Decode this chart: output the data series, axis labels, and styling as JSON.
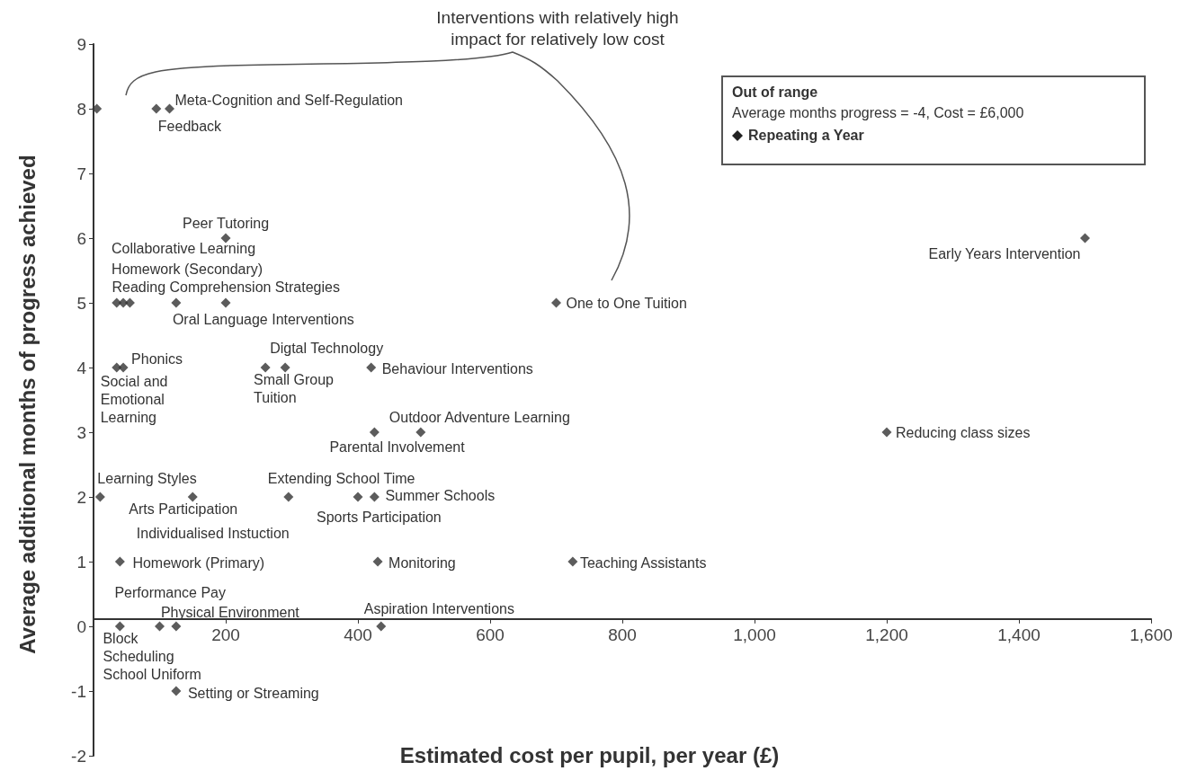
{
  "chart_data": {
    "type": "scatter",
    "xlabel": "Estimated cost per pupil, per year (£)",
    "ylabel": "Average additional months of progress achieved",
    "x": [
      5,
      95,
      115,
      200,
      35,
      45,
      55,
      125,
      200,
      1500,
      700,
      35,
      45,
      260,
      290,
      420,
      425,
      495,
      1200,
      10,
      150,
      295,
      400,
      425,
      40,
      430,
      725,
      40,
      100,
      125,
      435,
      125
    ],
    "values": [
      8,
      8,
      8,
      6,
      5,
      5,
      5,
      5,
      5,
      6,
      5,
      4,
      4,
      4,
      4,
      4,
      3,
      3,
      3,
      2,
      2,
      2,
      2,
      2,
      1,
      1,
      1,
      0,
      0,
      0,
      0,
      -1
    ],
    "color": "#333333",
    "marker": "diamond",
    "grid": false,
    "xlim": [
      0,
      1600
    ],
    "xticks": [
      200,
      400,
      600,
      800,
      {
        "value": 1000,
        "label": "1,000"
      },
      {
        "value": 1200,
        "label": "1,200"
      },
      {
        "value": 1400,
        "label": "1,400"
      },
      {
        "value": 1600,
        "label": "1,600"
      }
    ],
    "ylim": [
      -2,
      9
    ],
    "yticks": [
      -2,
      -1,
      0,
      1,
      2,
      3,
      4,
      5,
      6,
      7,
      8,
      9
    ],
    "annotations": [
      "Interventions with relatively high\nimpact for relatively low cost",
      "Out of range",
      "Average months progress = -4, Cost = £6,000",
      "Repeating a Year",
      {
        "text": "Meta-Cognition and Self-Regulation",
        "x": 115,
        "y": 8
      },
      {
        "text": "Feedback",
        "x": 95,
        "y": 8
      },
      {
        "text": "Peer Tutoring",
        "x": 200,
        "y": 6
      },
      "Collaborative Learning",
      {
        "text": "Homework (Secondary)",
        "x": 45,
        "y": 5
      },
      {
        "text": "Reading Comprehension Strategies",
        "x": 55,
        "y": 5
      },
      {
        "text": "Oral Language Interventions",
        "x": 125,
        "y": 5
      },
      {
        "text": "Phonics",
        "x": 45,
        "y": 4
      },
      {
        "text": "Social and\nEmotional\nLearning",
        "x": 35,
        "y": 4
      },
      {
        "text": "Digtal Technology",
        "x": 290,
        "y": 4
      },
      {
        "text": "Small Group\nTuition",
        "x": 260,
        "y": 4
      },
      {
        "text": "Behaviour Interventions",
        "x": 420,
        "y": 4
      },
      {
        "text": "Outdoor Adventure Learning",
        "x": 495,
        "y": 3
      },
      {
        "text": "Parental Involvement",
        "x": 425,
        "y": 3
      },
      {
        "text": "Reducing class sizes",
        "x": 1200,
        "y": 3
      },
      {
        "text": "Early Years Intervention",
        "x": 1500,
        "y": 6
      },
      {
        "text": "One to One Tuition",
        "x": 700,
        "y": 5
      },
      {
        "text": "Learning Styles",
        "x": 10,
        "y": 2
      },
      {
        "text": "Arts Participation",
        "x": 150,
        "y": 2
      },
      {
        "text": "Individualised Instuction",
        "x": 295,
        "y": 2
      },
      {
        "text": "Extending School Time",
        "x": 295,
        "y": 2
      },
      {
        "text": "Summer Schools",
        "x": 425,
        "y": 2
      },
      {
        "text": "Sports Participation",
        "x": 400,
        "y": 2
      },
      {
        "text": "Homework (Primary)",
        "x": 40,
        "y": 1
      },
      {
        "text": "Monitoring",
        "x": 430,
        "y": 1
      },
      {
        "text": "Teaching Assistants",
        "x": 725,
        "y": 1
      },
      {
        "text": "Performance Pay",
        "x": 40,
        "y": 0
      },
      {
        "text": "Physical Environment",
        "x": 125,
        "y": 0
      },
      {
        "text": "Aspiration Interventions",
        "x": 435,
        "y": 0
      },
      {
        "text": "Block\nScheduling",
        "x": 40,
        "y": 0
      },
      {
        "text": "School Uniform",
        "x": 100,
        "y": 0
      },
      {
        "text": "Setting or Streaming",
        "x": 125,
        "y": -1
      }
    ]
  }
}
